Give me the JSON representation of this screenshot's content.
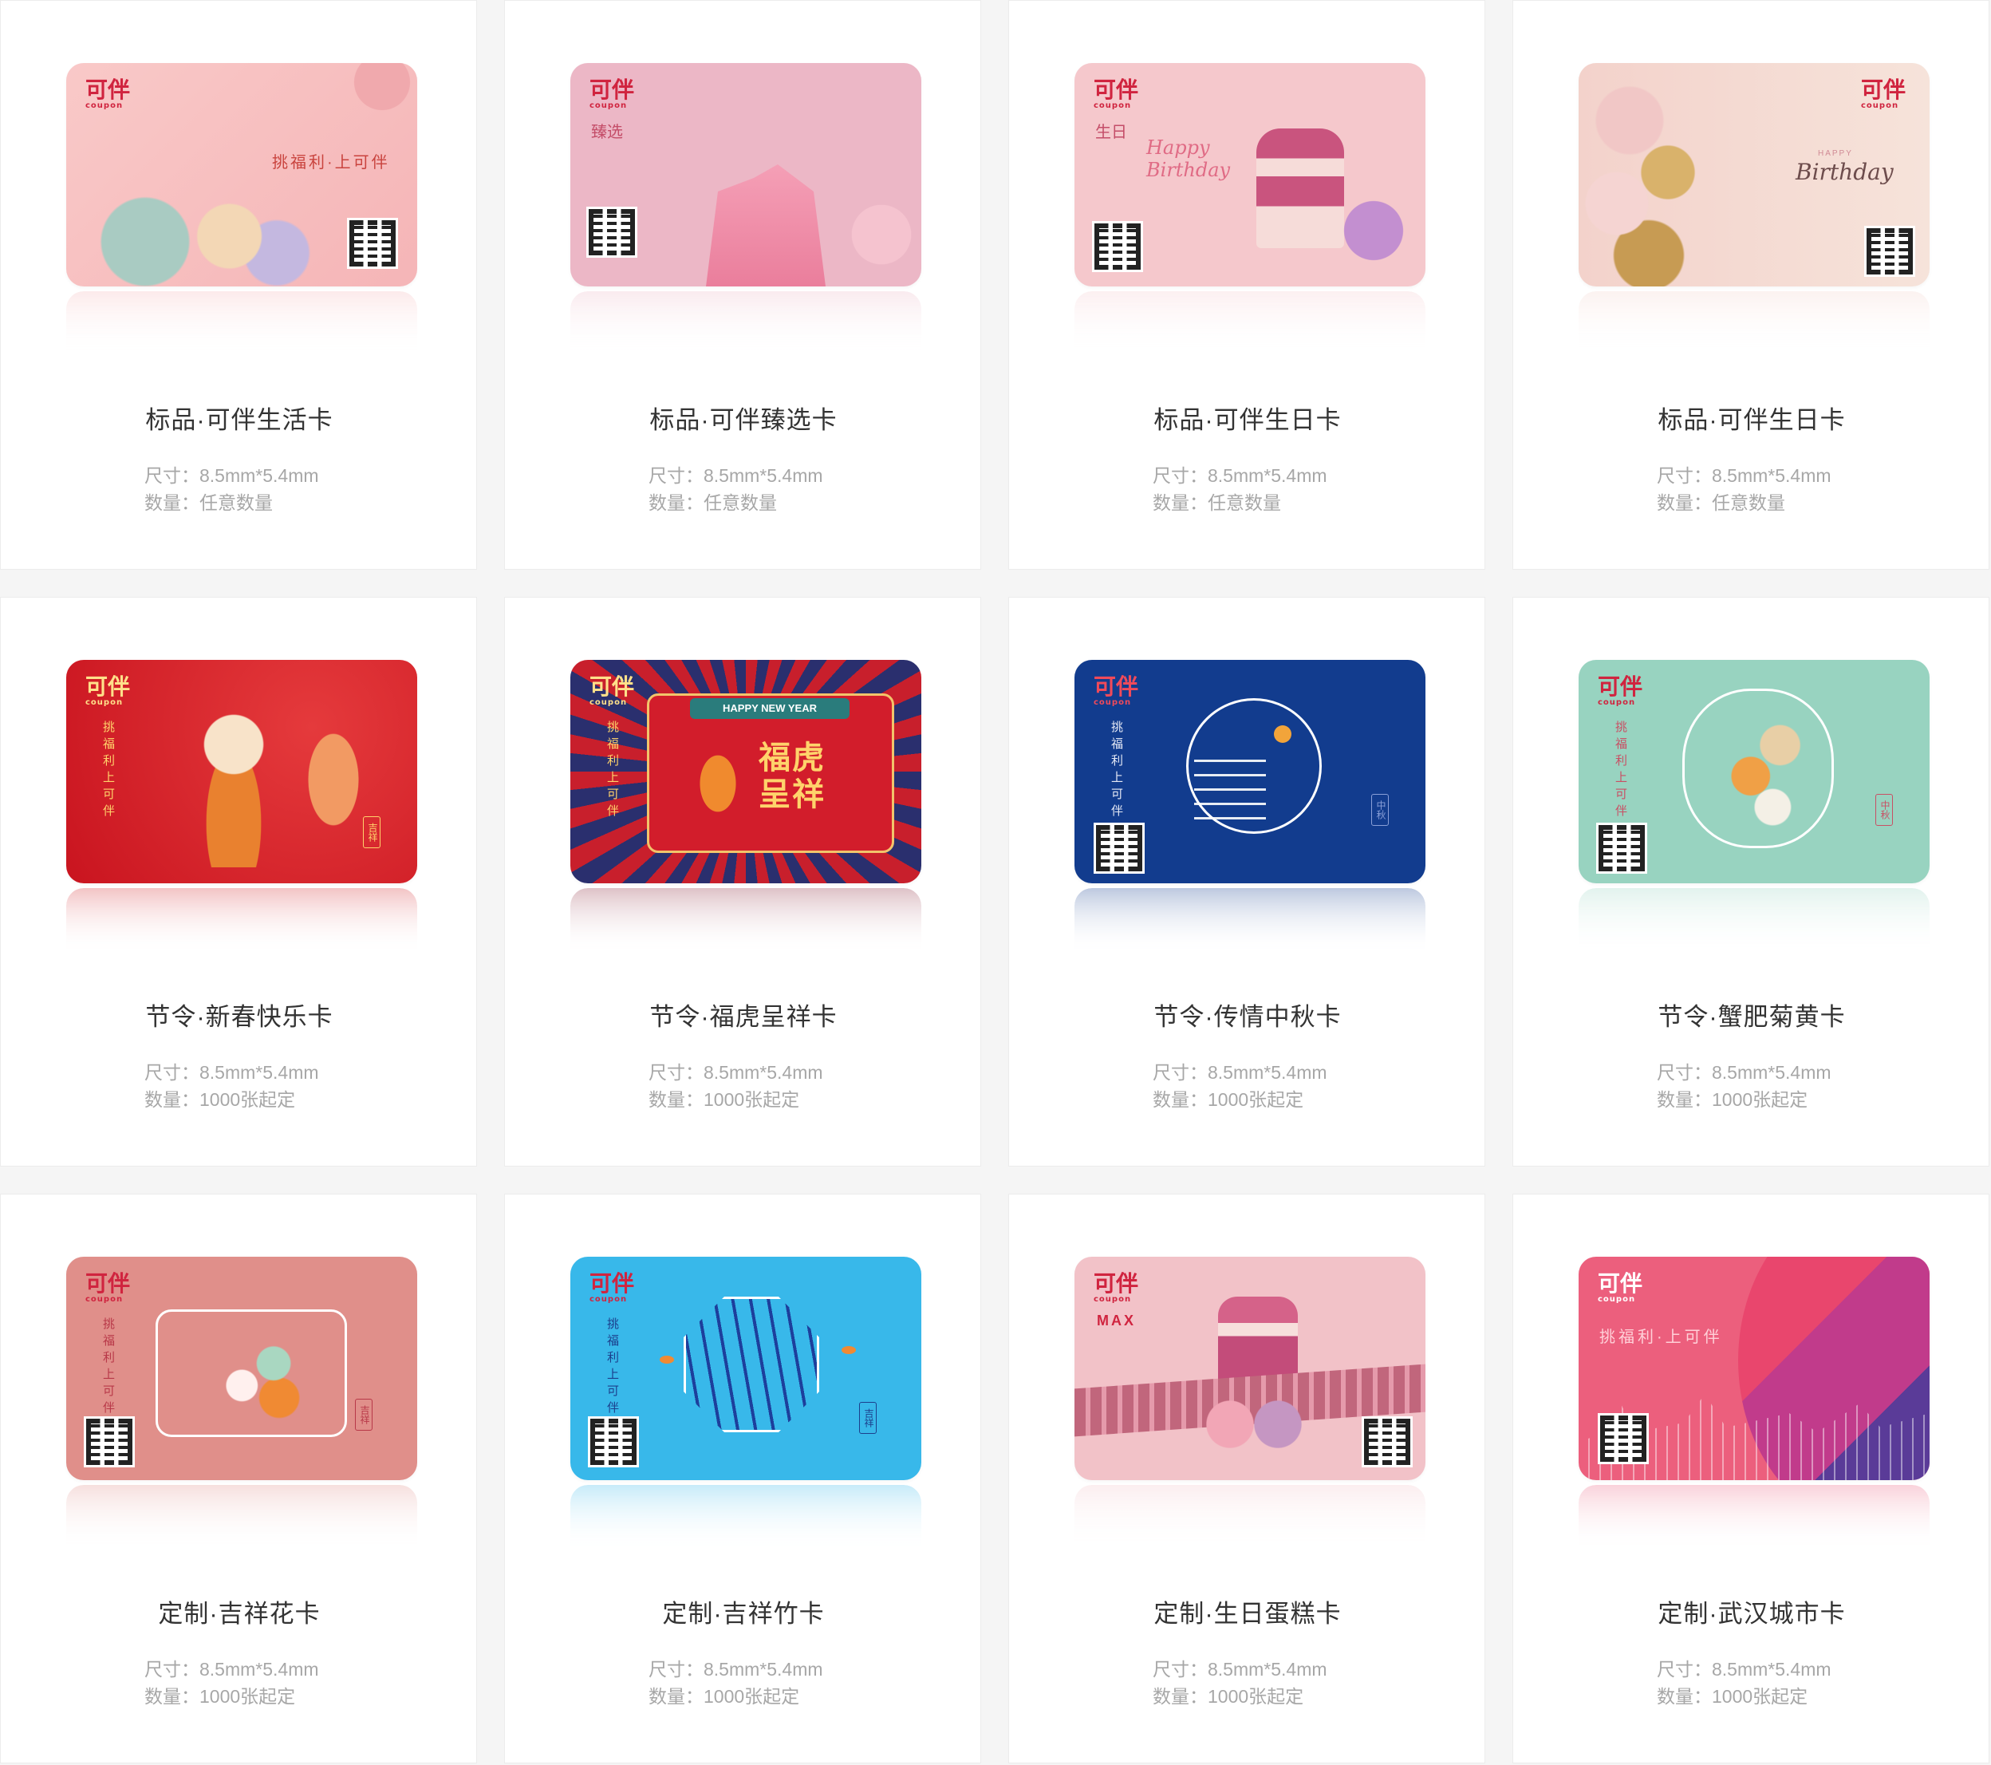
{
  "spec_labels": {
    "size": "尺寸：8.5mm*5.4mm"
  },
  "cards": [
    {
      "title": "标品·可伴生活卡",
      "qty": "数量：任意数量",
      "logo": "可伴",
      "logo_sub": "coupon",
      "card_text": "挑福利·上可伴"
    },
    {
      "title": "标品·可伴臻选卡",
      "qty": "数量：任意数量",
      "logo": "可伴",
      "logo_sub": "coupon",
      "card_text": "臻选"
    },
    {
      "title": "标品·可伴生日卡",
      "qty": "数量：任意数量",
      "logo": "可伴",
      "logo_sub": "coupon",
      "card_text": "生日",
      "card_text2": "Happy Birthday"
    },
    {
      "title": "标品·可伴生日卡",
      "qty": "数量：任意数量",
      "logo": "可伴",
      "logo_sub": "coupon",
      "card_text": "HAPPY",
      "card_text2": "Birthday"
    },
    {
      "title": "节令·新春快乐卡",
      "qty": "数量：1000张起定",
      "logo": "可伴",
      "logo_sub": "coupon",
      "card_text": "挑福利上可伴",
      "seal": "吉祥"
    },
    {
      "title": "节令·福虎呈祥卡",
      "qty": "数量：1000张起定",
      "logo": "可伴",
      "logo_sub": "coupon",
      "card_text": "挑福利上可伴",
      "card_text2": "HAPPY NEW YEAR",
      "card_text3": "福虎呈祥"
    },
    {
      "title": "节令·传情中秋卡",
      "qty": "数量：1000张起定",
      "logo": "可伴",
      "logo_sub": "coupon",
      "card_text": "挑福利上可伴",
      "seal": "中秋"
    },
    {
      "title": "节令·蟹肥菊黄卡",
      "qty": "数量：1000张起定",
      "logo": "可伴",
      "logo_sub": "coupon",
      "card_text": "挑福利上可伴",
      "seal": "中秋"
    },
    {
      "title": "定制·吉祥花卡",
      "qty": "数量：1000张起定",
      "logo": "可伴",
      "logo_sub": "coupon",
      "card_text": "挑福利上可伴",
      "seal": "吉祥"
    },
    {
      "title": "定制·吉祥竹卡",
      "qty": "数量：1000张起定",
      "logo": "可伴",
      "logo_sub": "coupon",
      "card_text": "挑福利上可伴",
      "seal": "吉祥"
    },
    {
      "title": "定制·生日蛋糕卡",
      "qty": "数量：1000张起定",
      "logo": "可伴",
      "logo_sub": "coupon",
      "card_text": "MAX"
    },
    {
      "title": "定制·武汉城市卡",
      "qty": "数量：1000张起定",
      "logo": "可伴",
      "logo_sub": "coupon",
      "card_text": "挑福利·上可伴"
    }
  ],
  "colors": {
    "title": "#333333",
    "spec": "#a7a7a7",
    "page_bg": "#f5f5f5",
    "tile_bg": "#ffffff"
  }
}
